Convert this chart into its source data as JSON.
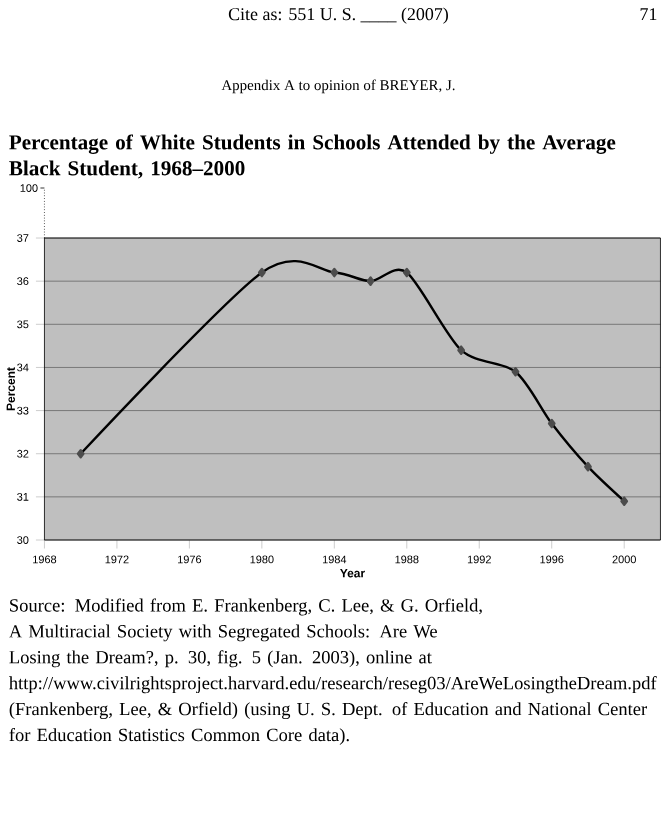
{
  "chart_data": {
    "type": "line",
    "title": "Percentage of White Students in Schools Attended by the Average Black Student, 1968–2000",
    "xlabel": "Year",
    "ylabel": "Percent",
    "x": [
      1970,
      1980,
      1984,
      1986,
      1988,
      1991,
      1994,
      1996,
      1998,
      2000
    ],
    "series": [
      {
        "color": "#000000",
        "values": [
          32.0,
          36.2,
          36.2,
          36.0,
          36.2,
          34.4,
          33.9,
          32.7,
          31.7,
          30.9
        ]
      }
    ],
    "xlim": [
      1968,
      2002
    ],
    "xticks": [
      1968,
      1972,
      1976,
      1980,
      1984,
      1988,
      1992,
      1996,
      2000
    ],
    "ylim": [
      30,
      37
    ],
    "yticks": [
      30,
      31,
      32,
      33,
      34,
      35,
      36,
      37
    ],
    "grid": "y",
    "marker": "diamond",
    "line_style": "solid",
    "annotations": [
      "Cite as: 551 U. S. ____ (2007)",
      "71",
      "Appendix A to opinion of BREYER, J.",
      "100",
      "Source: Modified from E. Frankenberg, C. Lee, & G. Orfield, A Multiracial Society with Segregated Schools: Are We Losing the Dream?, p. 30, fig. 5 (Jan. 2003), online at http://www.civilrightsproject.harvard.edu/research/reseg03/AreWeLosingtheDream.pdf (Frankenberg, Lee, & Orfield) (using U. S. Dept. of Education and National Center for Education Statistics Common Core data)."
    ]
  }
}
